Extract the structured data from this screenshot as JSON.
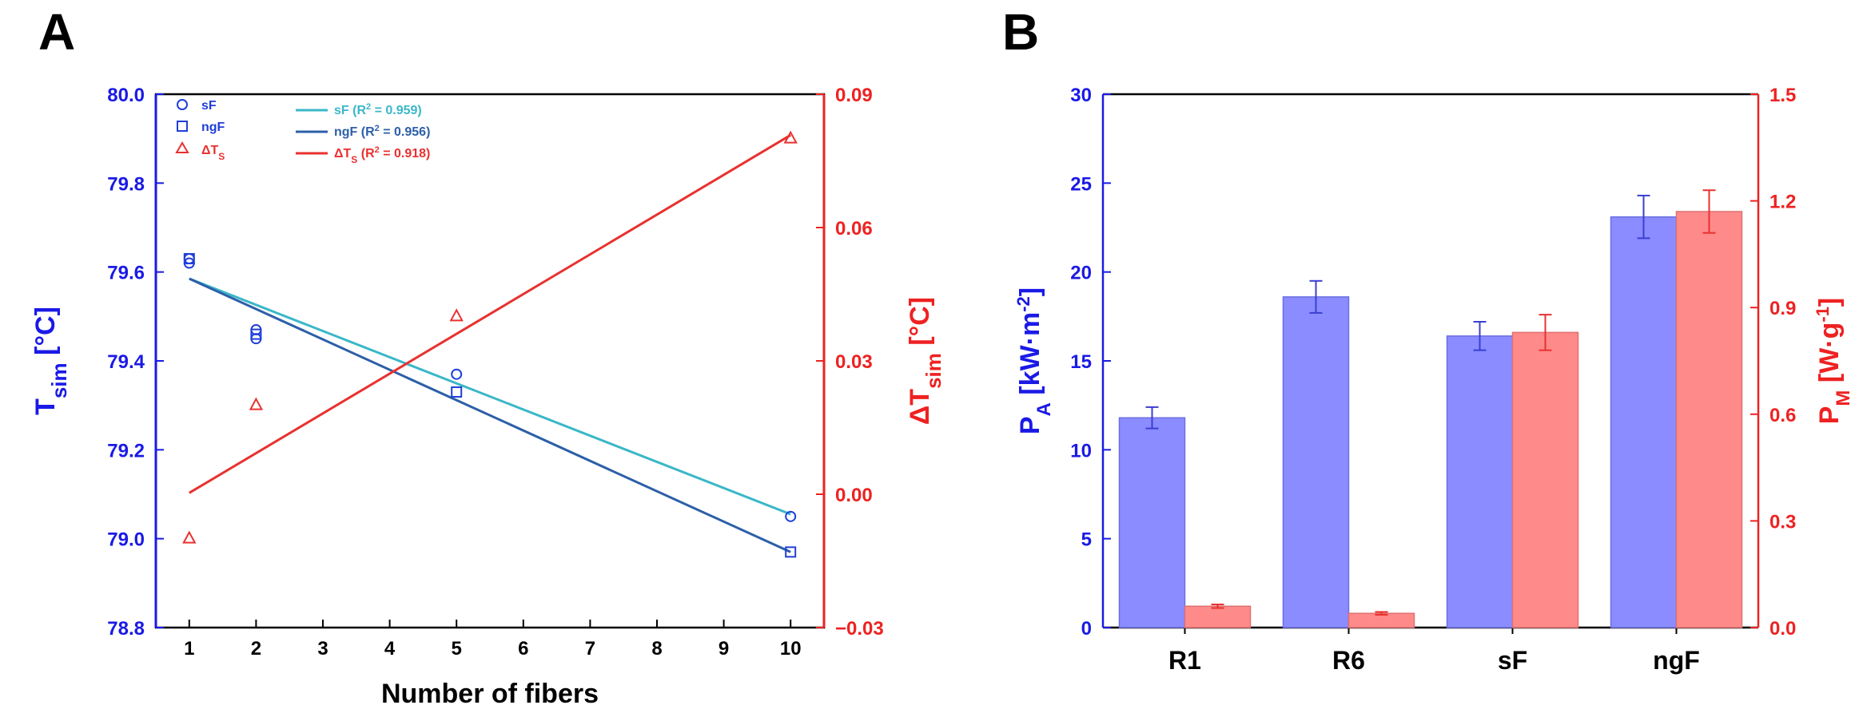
{
  "chart_data": [
    {
      "panel": "A",
      "type": "scatter",
      "xlabel": "Number of fibers",
      "ylabel_main": "T",
      "ylabel_sub": "sim",
      "ylabel_unit": " [°C]",
      "y2label_main": "ΔT",
      "y2label_sub": "sim",
      "y2label_unit": " [°C]",
      "xlim": [
        0.5,
        10.5
      ],
      "ylim": [
        78.8,
        80.0
      ],
      "y2lim": [
        -0.03,
        0.09
      ],
      "xticks": [
        1,
        2,
        3,
        4,
        5,
        6,
        7,
        8,
        9,
        10
      ],
      "yticks": [
        "78.8",
        "79.0",
        "79.2",
        "79.4",
        "79.6",
        "79.8",
        "80.0"
      ],
      "y2ticks": [
        "−0.03",
        "0.00",
        "0.03",
        "0.06",
        "0.09"
      ],
      "series": [
        {
          "name": "sF",
          "axis": "left",
          "marker": "circle",
          "color": "#1f3fd8",
          "x": [
            1,
            1,
            2,
            2,
            5,
            10
          ],
          "y": [
            79.63,
            79.62,
            79.47,
            79.45,
            79.37,
            79.05
          ]
        },
        {
          "name": "ngF",
          "axis": "left",
          "marker": "square",
          "color": "#1f3fd8",
          "x": [
            1,
            2,
            5,
            10
          ],
          "y": [
            79.63,
            79.46,
            79.33,
            78.97
          ]
        },
        {
          "name": "ΔT",
          "name_sub": "S",
          "axis": "right",
          "marker": "triangle",
          "color": "#e8312f",
          "x": [
            1,
            2,
            5,
            10
          ],
          "y": [
            -0.01,
            0.02,
            0.04,
            0.08
          ]
        }
      ],
      "fits": [
        {
          "name": "sF",
          "r2": "0.959",
          "axis": "left",
          "color": "#3ab7c8",
          "x": [
            1,
            10
          ],
          "y": [
            79.585,
            79.055
          ]
        },
        {
          "name": "ngF",
          "r2": "0.956",
          "axis": "left",
          "color": "#2c5fa8",
          "x": [
            1,
            10
          ],
          "y": [
            79.585,
            78.97
          ]
        },
        {
          "name": "ΔT",
          "name_sub": "S",
          "r2": "0.918",
          "axis": "right",
          "color": "#e8312f",
          "x": [
            1,
            10
          ],
          "y": [
            0.0003,
            0.0808
          ]
        }
      ]
    },
    {
      "panel": "B",
      "type": "bar",
      "categories": [
        "R1",
        "R6",
        "sF",
        "ngF"
      ],
      "ylabel_main": "P",
      "ylabel_sub": "A",
      "ylabel_unit_pre": " [kW·m",
      "ylabel_unit_sup": "-2",
      "ylabel_unit_post": "]",
      "y2label_main": "P",
      "y2label_sub": "M",
      "y2label_unit_pre": " [W·g",
      "y2label_unit_sup": "-1",
      "y2label_unit_post": "]",
      "ylim": [
        0,
        30
      ],
      "y2lim": [
        0,
        1.5
      ],
      "yticks": [
        "0",
        "5",
        "10",
        "15",
        "20",
        "25",
        "30"
      ],
      "y2ticks": [
        "0.0",
        "0.3",
        "0.6",
        "0.9",
        "1.2",
        "1.5"
      ],
      "series": [
        {
          "name": "P_A",
          "axis": "left",
          "color": "#8a8cff",
          "edge": "#6d6fe0",
          "err_color": "#3b3fd0",
          "values": [
            11.8,
            18.6,
            16.4,
            23.1
          ],
          "errors": [
            0.6,
            0.9,
            0.8,
            1.2
          ]
        },
        {
          "name": "P_M",
          "axis": "right",
          "color": "#ff8a8a",
          "edge": "#e07070",
          "err_color": "#e8312f",
          "values": [
            0.06,
            0.04,
            0.83,
            1.17
          ],
          "errors": [
            0.005,
            0.004,
            0.05,
            0.06
          ]
        }
      ]
    }
  ],
  "colors": {
    "left_axis": "#1a1ae6",
    "right_axis": "#ee2222",
    "black": "#000000"
  }
}
